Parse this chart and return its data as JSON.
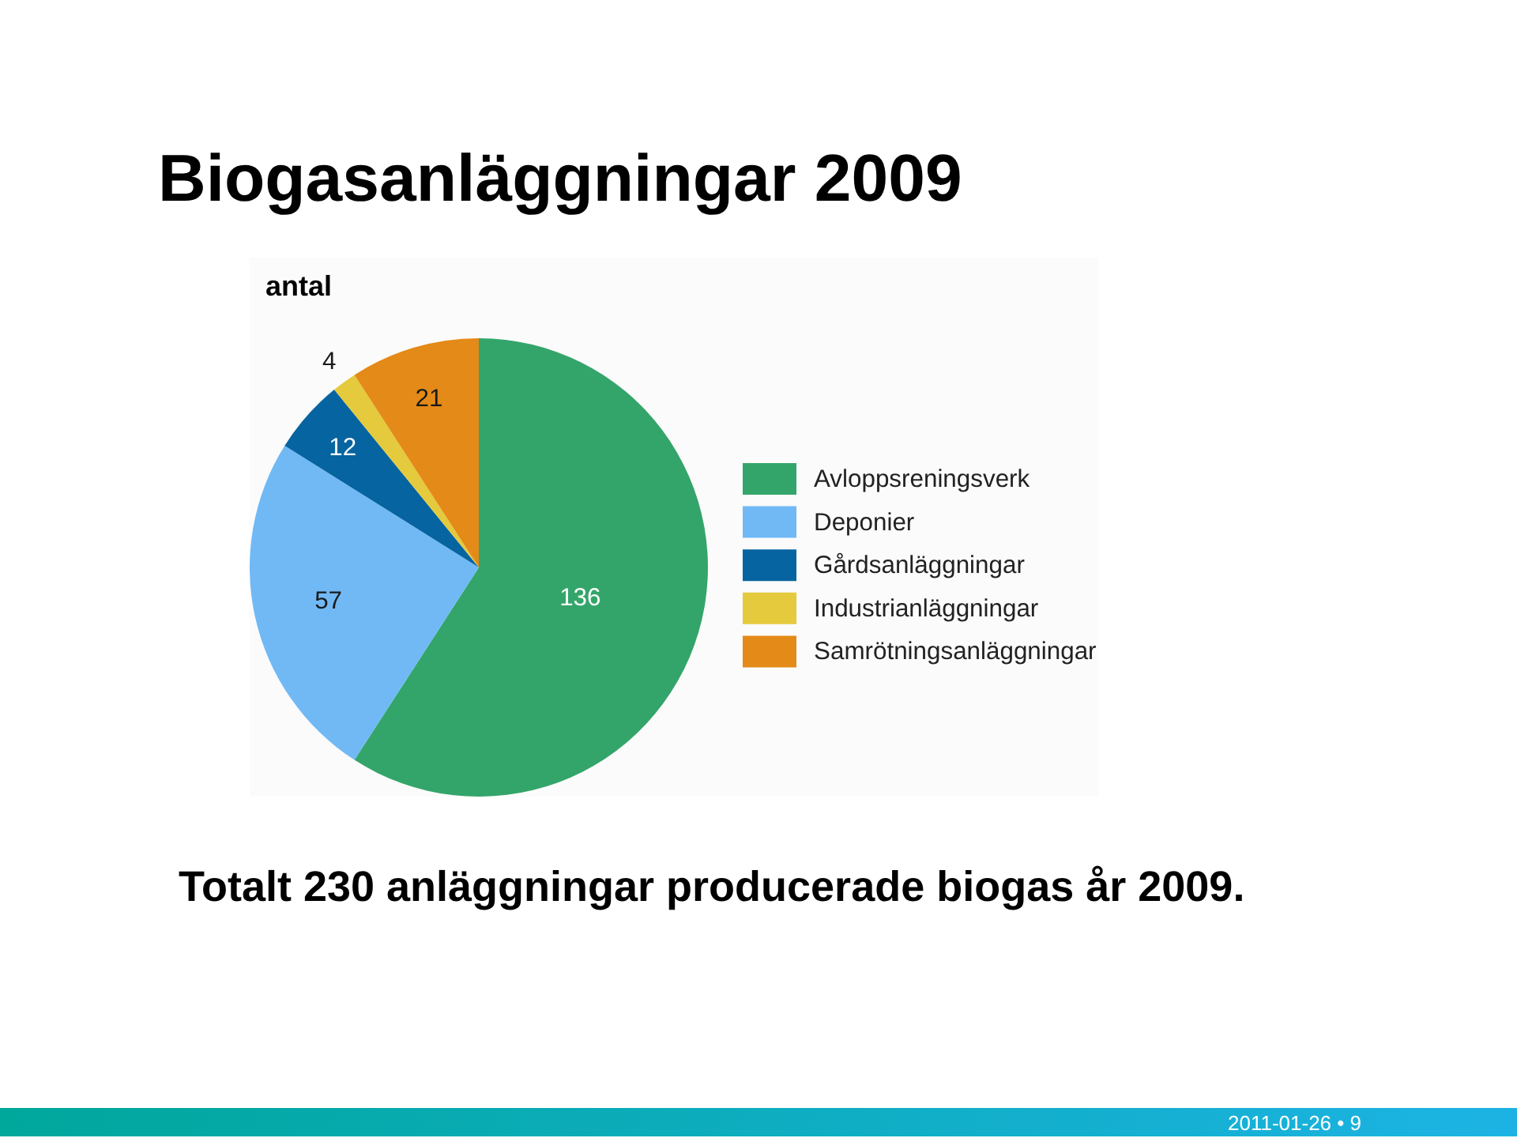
{
  "chart_data": {
    "type": "pie",
    "title": "Biogasanläggningar 2009",
    "subtitle": "antal",
    "categories": [
      "Avloppsreningsverk",
      "Deponier",
      "Gårdsanläggningar",
      "Industrianläggningar",
      "Samrötningsanläggningar"
    ],
    "values": [
      136,
      57,
      12,
      4,
      21
    ],
    "colors": [
      "#34a56a",
      "#70b9f5",
      "#0664a0",
      "#e4ca3c",
      "#e48a18"
    ],
    "data_labels": true,
    "legend": "right",
    "annotations": [
      "Totalt 230 anläggningar producerade biogas år 2009.",
      "2011-01-26 • 9"
    ]
  }
}
